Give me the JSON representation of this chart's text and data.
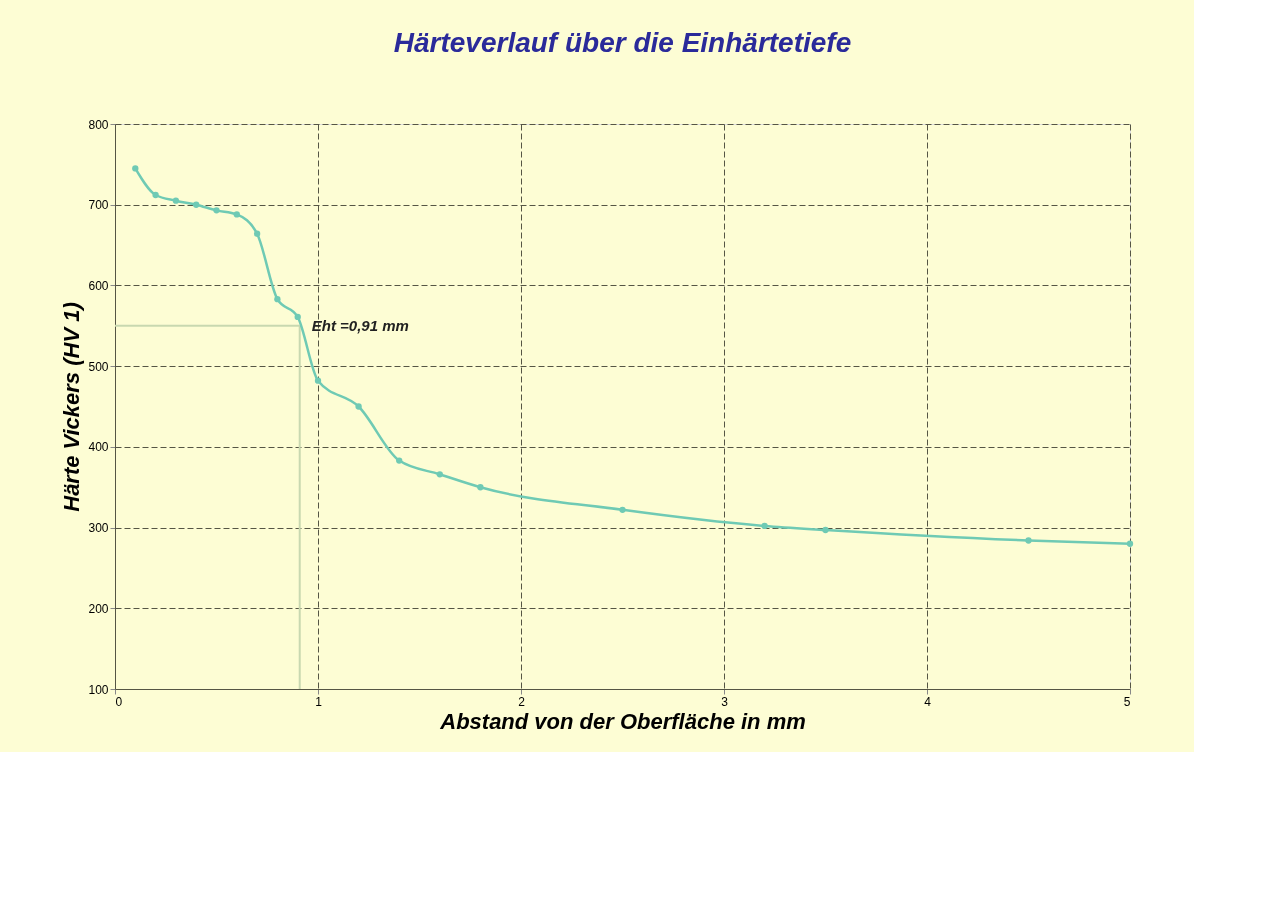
{
  "chart_data": {
    "type": "line",
    "title": "Härteverlauf über die Einhärtetiefe",
    "xlabel": "Abstand von der Oberfläche in mm",
    "ylabel": "Härte Vickers (HV 1)",
    "x": [
      0.1,
      0.2,
      0.3,
      0.4,
      0.5,
      0.6,
      0.7,
      0.8,
      0.9,
      1.0,
      1.2,
      1.4,
      1.6,
      1.8,
      2.5,
      3.2,
      3.5,
      4.5,
      5.0
    ],
    "series": [
      {
        "color": "#6fcab4",
        "values": [
          745,
          712,
          705,
          700,
          693,
          688,
          664,
          583,
          561,
          482,
          450,
          383,
          366,
          350,
          322,
          302,
          297,
          284,
          280
        ]
      }
    ],
    "xlim": [
      0,
      5
    ],
    "xticks": [
      0,
      1,
      2,
      3,
      4,
      5
    ],
    "ylim": [
      100,
      800
    ],
    "yticks": [
      100,
      200,
      300,
      400,
      500,
      600,
      700,
      800
    ],
    "grid": true,
    "marker": "circle",
    "line_style": "solid",
    "ref_lines": [
      {
        "axis": "y",
        "value": 550,
        "color": "#c8d8b0"
      },
      {
        "axis": "x",
        "value": 0.91,
        "color": "#c8d8b0"
      }
    ],
    "annotations": [
      {
        "text": "Eht =0,91 mm",
        "x": 0.91,
        "y": 550
      }
    ]
  }
}
